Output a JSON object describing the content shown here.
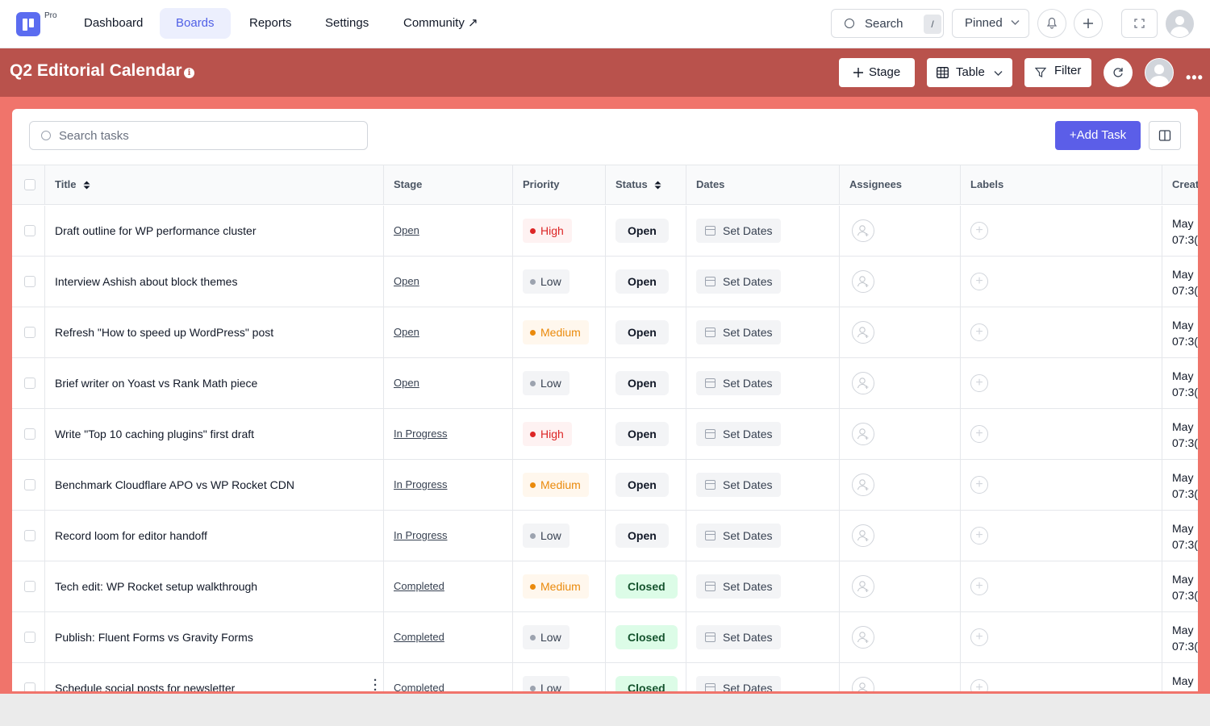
{
  "nav": {
    "pro_label": "Pro",
    "items": [
      "Dashboard",
      "Boards",
      "Reports",
      "Settings",
      "Community ↗"
    ],
    "active": "Boards",
    "search_label": "Search",
    "search_shortcut": "/",
    "pinned_label": "Pinned"
  },
  "board": {
    "title": "Q2 Editorial Calendar",
    "info_icon": "i",
    "stage_label": "Stage",
    "view_label": "Table",
    "filter_label": "Filter",
    "more_label": "•••"
  },
  "toolbar": {
    "search_placeholder": "Search tasks",
    "add_task_label": "+Add Task"
  },
  "columns": [
    "Title",
    "Stage",
    "Priority",
    "Status",
    "Dates",
    "Assignees",
    "Labels",
    "Created"
  ],
  "priority_colors": {
    "High": {
      "fg": "#dc2626",
      "bg": "#fef2f2"
    },
    "Medium": {
      "fg": "#ea8a0c",
      "bg": "#fff7ed"
    },
    "Low": {
      "fg": "#374151",
      "bg": "#f3f4f6"
    }
  },
  "status_colors": {
    "Open": {
      "fg": "#111827",
      "bg": "#f3f4f6"
    },
    "Closed": {
      "fg": "#14532d",
      "bg": "#dcfce7"
    }
  },
  "rows": [
    {
      "title": "Draft outline for WP performance cluster",
      "stage": "Open",
      "priority": "High",
      "status": "Open",
      "dates": "Set Dates",
      "created_line1": "May",
      "created_line2": "07:3("
    },
    {
      "title": "Interview Ashish about block themes",
      "stage": "Open",
      "priority": "Low",
      "status": "Open",
      "dates": "Set Dates",
      "created_line1": "May",
      "created_line2": "07:3("
    },
    {
      "title": "Refresh \"How to speed up WordPress\" post",
      "stage": "Open",
      "priority": "Medium",
      "status": "Open",
      "dates": "Set Dates",
      "created_line1": "May",
      "created_line2": "07:3("
    },
    {
      "title": "Brief writer on Yoast vs Rank Math piece",
      "stage": "Open",
      "priority": "Low",
      "status": "Open",
      "dates": "Set Dates",
      "created_line1": "May",
      "created_line2": "07:3("
    },
    {
      "title": "Write \"Top 10 caching plugins\" first draft",
      "stage": "In Progress",
      "priority": "High",
      "status": "Open",
      "dates": "Set Dates",
      "created_line1": "May",
      "created_line2": "07:3("
    },
    {
      "title": "Benchmark Cloudflare APO vs WP Rocket CDN",
      "stage": "In Progress",
      "priority": "Medium",
      "status": "Open",
      "dates": "Set Dates",
      "created_line1": "May",
      "created_line2": "07:3("
    },
    {
      "title": "Record loom for editor handoff",
      "stage": "In Progress",
      "priority": "Low",
      "status": "Open",
      "dates": "Set Dates",
      "created_line1": "May",
      "created_line2": "07:3("
    },
    {
      "title": "Tech edit: WP Rocket setup walkthrough",
      "stage": "Completed",
      "priority": "Medium",
      "status": "Closed",
      "dates": "Set Dates",
      "created_line1": "May",
      "created_line2": "07:3("
    },
    {
      "title": "Publish: Fluent Forms vs Gravity Forms",
      "stage": "Completed",
      "priority": "Low",
      "status": "Closed",
      "dates": "Set Dates",
      "created_line1": "May",
      "created_line2": "07:3("
    },
    {
      "title": "Schedule social posts for newsletter",
      "stage": "Completed",
      "priority": "Low",
      "status": "Closed",
      "dates": "Set Dates",
      "created_line1": "May",
      "created_line2": ""
    }
  ]
}
